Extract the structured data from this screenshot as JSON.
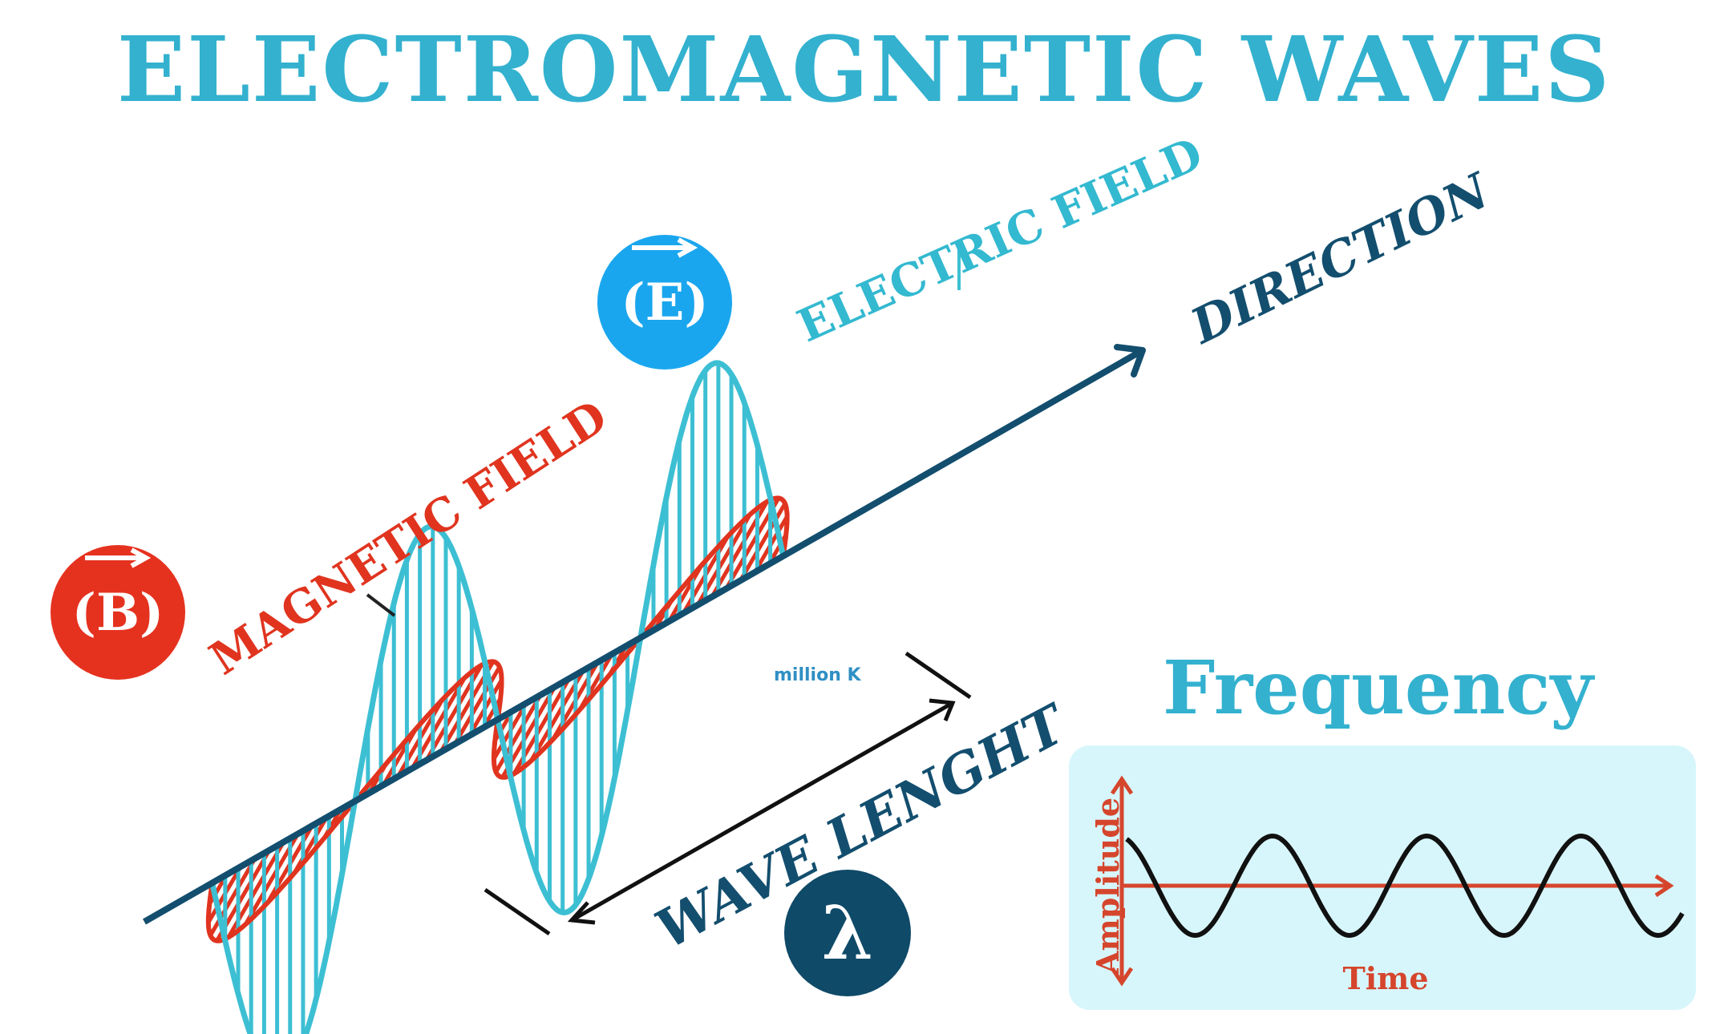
{
  "title": "ELECTROMAGNETIC WAVES",
  "labels": {
    "electric_field": "ELECTRIC FIELD",
    "magnetic_field": "MAGNETIC FIELD",
    "direction": "DIRECTION",
    "wave_length": "WAVE LENGHT",
    "inline_note": "million K"
  },
  "badges": {
    "electric": "E",
    "magnetic": "B",
    "lambda": "λ"
  },
  "frequency": {
    "title": "Frequency",
    "x_label": "Time",
    "y_label": "Amplitude"
  },
  "colors": {
    "title": "#33b1cf",
    "electric_wave": "#3dbfd3",
    "magnetic_wave": "#e0341f",
    "axis": "#134e6e",
    "badge_e": "#1aa6ee",
    "badge_b": "#e5321f",
    "badge_lambda": "#0f4a68",
    "frequency_panel": "#d7f6fb",
    "frequency_axis": "#d5452c"
  }
}
